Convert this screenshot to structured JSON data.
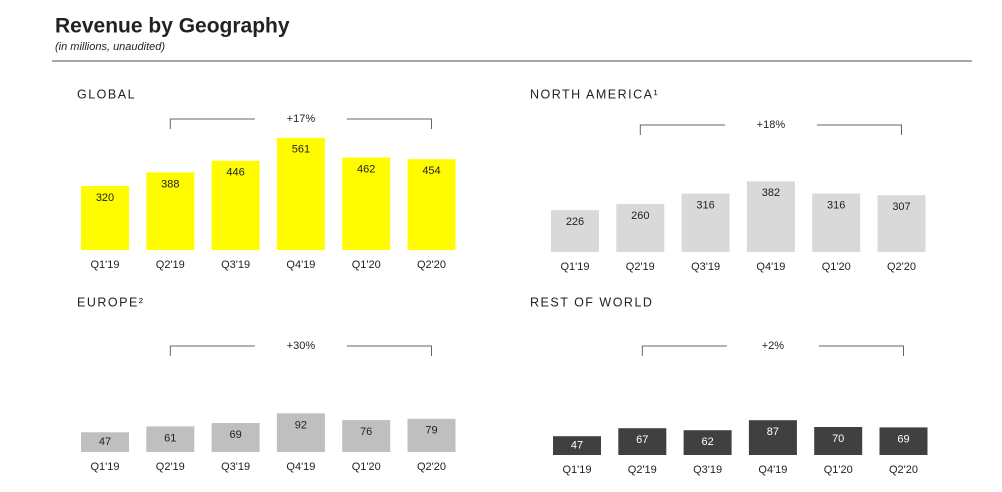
{
  "title": "Revenue by Geography",
  "subtitle": "(in millions, unaudited)",
  "chart_data": [
    {
      "type": "bar",
      "title": "GLOBAL",
      "categories": [
        "Q1'19",
        "Q2'19",
        "Q3'19",
        "Q4'19",
        "Q1'20",
        "Q2'20"
      ],
      "values": [
        320,
        388,
        446,
        561,
        462,
        454
      ],
      "color": "#fffc00",
      "label_color": "#222222",
      "annotation": "+17%"
    },
    {
      "type": "bar",
      "title": "NORTH AMERICA¹",
      "categories": [
        "Q1'19",
        "Q2'19",
        "Q3'19",
        "Q4'19",
        "Q1'20",
        "Q2'20"
      ],
      "values": [
        226,
        260,
        316,
        382,
        316,
        307
      ],
      "color": "#d9d9d9",
      "label_color": "#222222",
      "annotation": "+18%"
    },
    {
      "type": "bar",
      "title": "EUROPE²",
      "categories": [
        "Q1'19",
        "Q2'19",
        "Q3'19",
        "Q4'19",
        "Q1'20",
        "Q2'20"
      ],
      "values": [
        47,
        61,
        69,
        92,
        76,
        79
      ],
      "color": "#bfbfbf",
      "label_color": "#222222",
      "annotation": "+30%"
    },
    {
      "type": "bar",
      "title": "REST OF WORLD",
      "categories": [
        "Q1'19",
        "Q2'19",
        "Q3'19",
        "Q4'19",
        "Q1'20",
        "Q2'20"
      ],
      "values": [
        47,
        67,
        62,
        87,
        70,
        69
      ],
      "color": "#404040",
      "label_color": "#ffffff",
      "annotation": "+2%"
    }
  ]
}
